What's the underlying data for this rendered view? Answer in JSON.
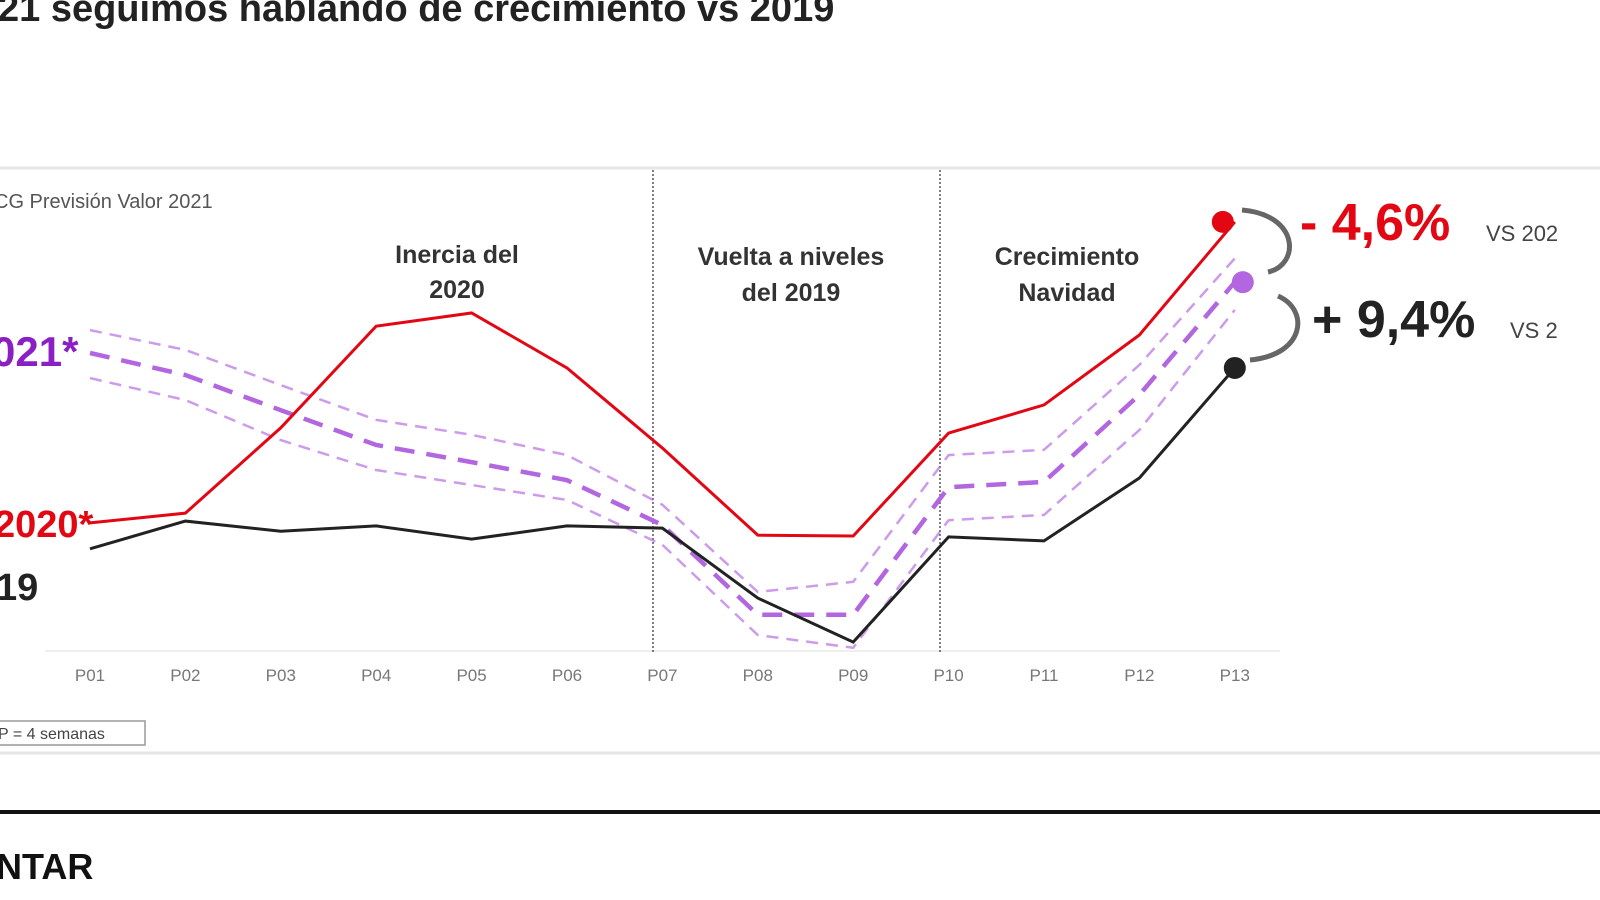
{
  "title": "21 seguimos hablando de crecimiento vs 2019",
  "footer_text": "NTAR",
  "colors": {
    "y2020": "#e30613",
    "y2019": "#222222",
    "y2021": "#b266e0",
    "y2021_label": "#8a1fc4"
  },
  "chart_data": {
    "type": "line",
    "subtitle": "CG Previsión Valor 2021",
    "categories": [
      "P01",
      "P02",
      "P03",
      "P04",
      "P05",
      "P06",
      "P07",
      "P08",
      "P09",
      "P10",
      "P11",
      "P12",
      "P13"
    ],
    "ylim": [
      0,
      100
    ],
    "grid": false,
    "series": [
      {
        "name": "2020*",
        "style": "solid",
        "values": [
          28.9,
          31.1,
          50.5,
          73.6,
          76.6,
          64.1,
          45.9,
          26.1,
          25.9,
          49.3,
          55.7,
          71.6,
          97.3
        ]
      },
      {
        "name": "19",
        "style": "solid",
        "values": [
          23.0,
          29.3,
          27.0,
          28.2,
          25.2,
          28.2,
          27.7,
          11.8,
          1.8,
          25.7,
          24.8,
          39.1,
          64.1
        ]
      },
      {
        "name": "021*",
        "style": "dashed",
        "values": [
          67.5,
          62.5,
          54.5,
          46.6,
          42.7,
          38.6,
          28.4,
          8.0,
          8.0,
          37.0,
          38.2,
          58.0,
          83.6
        ],
        "band_upper": [
          72.7,
          68.2,
          60.2,
          52.3,
          48.9,
          44.3,
          33.0,
          13.2,
          15.5,
          44.3,
          45.5,
          64.8,
          89.0
        ],
        "band_lower": [
          61.8,
          56.8,
          47.7,
          40.9,
          37.5,
          34.1,
          23.9,
          3.4,
          0.5,
          29.5,
          30.7,
          50.0,
          77.3
        ]
      }
    ],
    "phases": [
      {
        "label_lines": [
          "Inercia del",
          "2020"
        ]
      },
      {
        "label_lines": [
          "Vuelta a niveles",
          "del 2019"
        ]
      },
      {
        "label_lines": [
          "Crecimiento",
          "Navidad"
        ]
      }
    ],
    "annotations": [
      {
        "value": "- 4,6%",
        "suffix": "VS 202"
      },
      {
        "value": "+ 9,4%",
        "suffix": "VS 2"
      }
    ],
    "note": "P = 4 semanas"
  }
}
